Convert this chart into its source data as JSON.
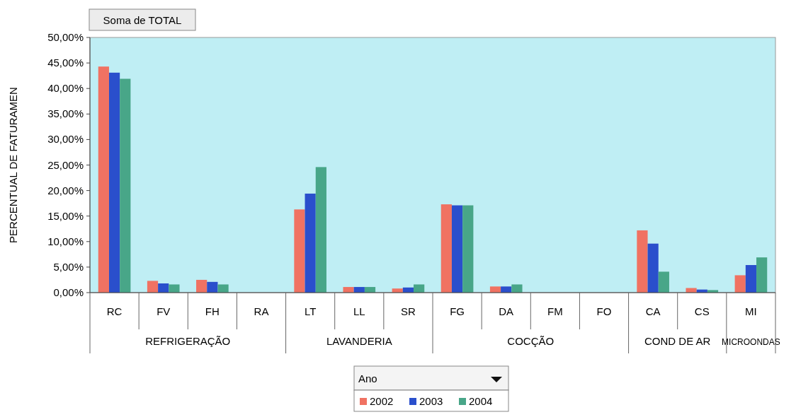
{
  "chart_data": {
    "type": "bar",
    "title": "Soma de TOTAL",
    "ylabel": "PERCENTUAL DE FATURAMEN",
    "legend_title": "Ano",
    "legend": "bottom",
    "grid": false,
    "categories": [
      "RC",
      "FV",
      "FH",
      "RA",
      "LT",
      "LL",
      "SR",
      "FG",
      "DA",
      "FM",
      "FO",
      "CA",
      "CS",
      "MI"
    ],
    "annotations": [
      "REFRIGERAÇÃO",
      "LAVANDERIA",
      "COCÇÃO",
      "COND DE AR",
      "MICROONDAS"
    ],
    "ylim": [
      0,
      50
    ],
    "yticks": [
      {
        "value": 0,
        "label": "0,00%"
      },
      {
        "value": 5,
        "label": "5,00%"
      },
      {
        "value": 10,
        "label": "10,00%"
      },
      {
        "value": 15,
        "label": "15,00%"
      },
      {
        "value": 20,
        "label": "20,00%"
      },
      {
        "value": 25,
        "label": "25,00%"
      },
      {
        "value": 30,
        "label": "30,00%"
      },
      {
        "value": 35,
        "label": "35,00%"
      },
      {
        "value": 40,
        "label": "40,00%"
      },
      {
        "value": 45,
        "label": "45,00%"
      },
      {
        "value": 50,
        "label": "50,00%"
      }
    ],
    "series": [
      {
        "name": "2002",
        "color": "#f07262",
        "values": [
          44.3,
          2.3,
          2.5,
          0,
          16.3,
          1.1,
          0.8,
          17.3,
          1.2,
          0,
          0,
          12.2,
          0.9,
          3.4
        ]
      },
      {
        "name": "2003",
        "color": "#2a4fcc",
        "values": [
          43.1,
          1.8,
          2.1,
          0,
          19.4,
          1.1,
          1.0,
          17.1,
          1.2,
          0,
          0,
          9.6,
          0.6,
          5.4
        ]
      },
      {
        "name": "2004",
        "color": "#48a688",
        "values": [
          41.9,
          1.6,
          1.6,
          0,
          24.6,
          1.1,
          1.6,
          17.1,
          1.6,
          0,
          0,
          4.1,
          0.5,
          6.9
        ]
      }
    ]
  }
}
